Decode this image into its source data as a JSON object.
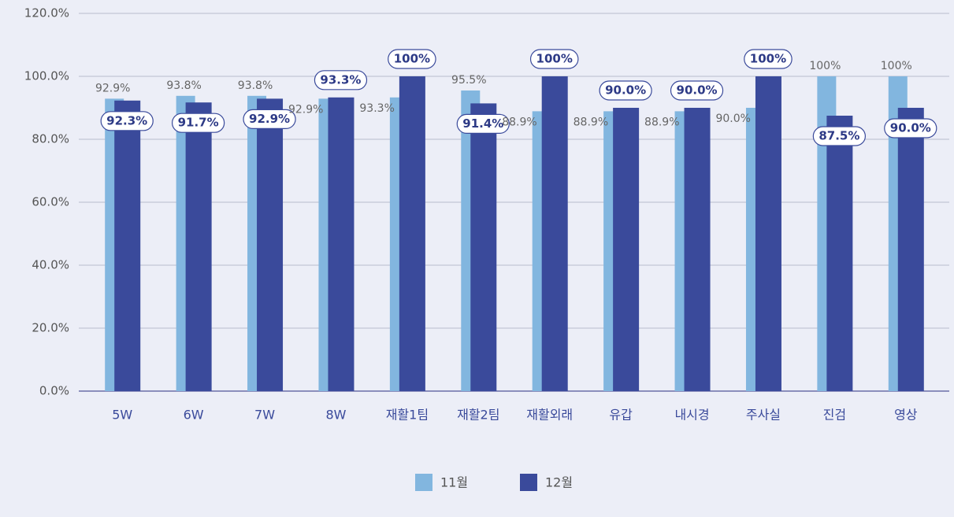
{
  "chart_data": {
    "type": "bar",
    "categories": [
      "5W",
      "6W",
      "7W",
      "8W",
      "재활1팀",
      "재활2팀",
      "재활외래",
      "유갑",
      "내시경",
      "주사실",
      "진검",
      "영상"
    ],
    "series": [
      {
        "name": "11월",
        "color": "#82b6df",
        "values": [
          92.9,
          93.8,
          93.8,
          92.9,
          93.3,
          95.5,
          88.9,
          88.9,
          88.9,
          90.0,
          100,
          100
        ],
        "value_labels": [
          "92.9%",
          "93.8%",
          "93.8%",
          "92.9%",
          "93.3%",
          "95.5%",
          "88.9%",
          "88.9%",
          "88.9%",
          "90.0%",
          "100%",
          "100%"
        ]
      },
      {
        "name": "12월",
        "color": "#3a4a9b",
        "values": [
          92.3,
          91.7,
          92.9,
          93.3,
          100,
          91.4,
          100,
          90.0,
          90.0,
          100,
          87.5,
          90.0
        ],
        "value_labels": [
          "92.3%",
          "91.7%",
          "92.9%",
          "93.3%",
          "100%",
          "91.4%",
          "100%",
          "90.0%",
          "90.0%",
          "100%",
          "87.5%",
          "90.0%"
        ]
      }
    ],
    "ylim": [
      0,
      120
    ],
    "yticks": [
      {
        "value": 0,
        "label": "0.0%"
      },
      {
        "value": 20,
        "label": "20.0%"
      },
      {
        "value": 40,
        "label": "40.0%"
      },
      {
        "value": 60,
        "label": "60.0%"
      },
      {
        "value": 80,
        "label": "80.0%"
      },
      {
        "value": 100,
        "label": "100.0%"
      },
      {
        "value": 120,
        "label": "120.0%"
      }
    ],
    "grid": true,
    "legend": "bottom"
  }
}
